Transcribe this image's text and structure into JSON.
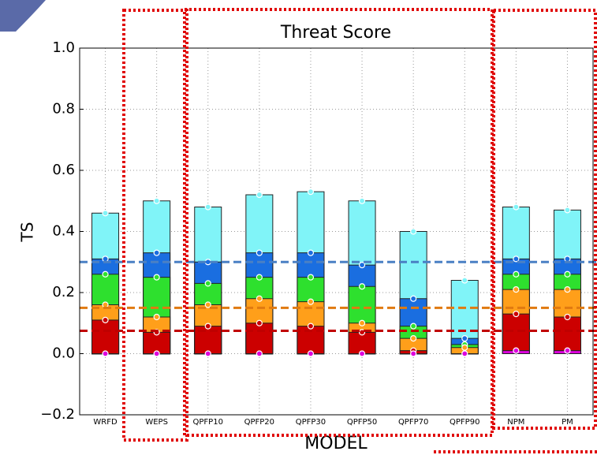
{
  "chart_data": {
    "type": "bar",
    "title": "Threat Score",
    "y_label": "TS",
    "x_label": "MODEL",
    "categories": [
      "WRFD",
      "WEPS",
      "QPFP10",
      "QPFP20",
      "QPFP30",
      "QPFP50",
      "QPFP70",
      "QPFP90",
      "NPM",
      "PM"
    ],
    "series": [
      {
        "color": "#80f4f8",
        "values": [
          0.46,
          0.5,
          0.48,
          0.52,
          0.53,
          0.5,
          0.4,
          0.24,
          0.48,
          0.47
        ]
      },
      {
        "color": "#1a6ee0",
        "values": [
          0.31,
          0.33,
          0.3,
          0.33,
          0.33,
          0.29,
          0.18,
          0.05,
          0.31,
          0.31
        ]
      },
      {
        "color": "#2ee02e",
        "values": [
          0.26,
          0.25,
          0.23,
          0.25,
          0.25,
          0.22,
          0.09,
          0.03,
          0.26,
          0.26
        ]
      },
      {
        "color": "#ff9f1a",
        "values": [
          0.16,
          0.12,
          0.16,
          0.18,
          0.17,
          0.1,
          0.05,
          0.02,
          0.21,
          0.21
        ]
      },
      {
        "color": "#cc0000",
        "values": [
          0.11,
          0.07,
          0.09,
          0.1,
          0.09,
          0.07,
          0.01,
          0.0,
          0.13,
          0.12
        ]
      },
      {
        "color": "#dd00dd",
        "values": [
          0.0,
          0.0,
          0.0,
          0.0,
          0.0,
          0.0,
          0.0,
          0.0,
          0.01,
          0.01
        ]
      }
    ],
    "reference_lines": [
      {
        "value": 0.3,
        "color": "#4a80c4"
      },
      {
        "value": 0.15,
        "color": "#e07a10"
      },
      {
        "value": 0.075,
        "color": "#c00000"
      }
    ],
    "ylim": [
      -0.2,
      1.0
    ],
    "yticks": [
      {
        "value": -0.2,
        "label": "−0.2"
      },
      {
        "value": 0,
        "label": "0.0"
      },
      0.2,
      0.4,
      0.6,
      0.8,
      {
        "value": 1.0,
        "label": "1.0"
      }
    ],
    "grid": true
  }
}
